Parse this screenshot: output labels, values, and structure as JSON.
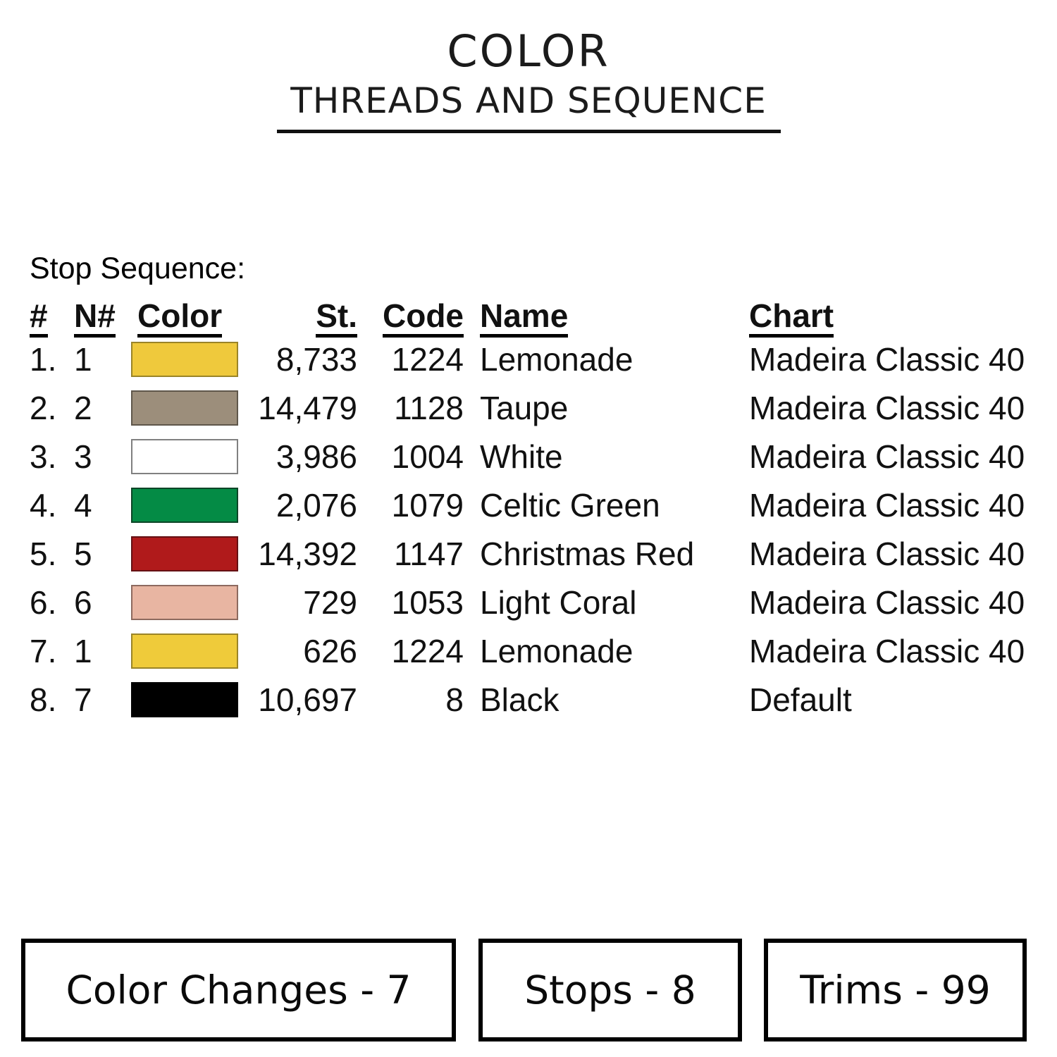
{
  "page": {
    "title": "COLOR",
    "subtitle": "THREADS AND SEQUENCE"
  },
  "stop_sequence": {
    "label": "Stop Sequence:",
    "headers": {
      "index": "#",
      "needle": "N#",
      "color": "Color",
      "stitches": "St.",
      "code": "Code",
      "name": "Name",
      "chart": "Chart"
    },
    "rows": [
      {
        "index": "1.",
        "needle": "1",
        "swatch": {
          "fill": "#efc93c",
          "border": "#9a8428"
        },
        "stitches": "8,733",
        "code": "1224",
        "name": "Lemonade",
        "chart": "Madeira Classic 40"
      },
      {
        "index": "2.",
        "needle": "2",
        "swatch": {
          "fill": "#9c8e7b",
          "border": "#5f574b"
        },
        "stitches": "14,479",
        "code": "1128",
        "name": "Taupe",
        "chart": "Madeira Classic 40"
      },
      {
        "index": "3.",
        "needle": "3",
        "swatch": {
          "fill": "#ffffff",
          "border": "#808080"
        },
        "stitches": "3,986",
        "code": "1004",
        "name": "White",
        "chart": "Madeira Classic 40"
      },
      {
        "index": "4.",
        "needle": "4",
        "swatch": {
          "fill": "#048b45",
          "border": "#0d4527"
        },
        "stitches": "2,076",
        "code": "1079",
        "name": "Celtic Green",
        "chart": "Madeira Classic 40"
      },
      {
        "index": "5.",
        "needle": "5",
        "swatch": {
          "fill": "#b01a1b",
          "border": "#641114"
        },
        "stitches": "14,392",
        "code": "1147",
        "name": "Christmas Red",
        "chart": "Madeira Classic 40"
      },
      {
        "index": "6.",
        "needle": "6",
        "swatch": {
          "fill": "#e8b5a2",
          "border": "#8d6a5f"
        },
        "stitches": "729",
        "code": "1053",
        "name": "Light Coral",
        "chart": "Madeira Classic 40"
      },
      {
        "index": "7.",
        "needle": "1",
        "swatch": {
          "fill": "#efcb3a",
          "border": "#9a8428"
        },
        "stitches": "626",
        "code": "1224",
        "name": "Lemonade",
        "chart": "Madeira Classic 40"
      },
      {
        "index": "8.",
        "needle": "7",
        "swatch": {
          "fill": "#000000",
          "border": "#000000"
        },
        "stitches": "10,697",
        "code": "8",
        "name": "Black",
        "chart": "Default"
      }
    ]
  },
  "summary": {
    "color_changes": "Color Changes - 7",
    "stops": "Stops - 8",
    "trims": "Trims - 99"
  }
}
